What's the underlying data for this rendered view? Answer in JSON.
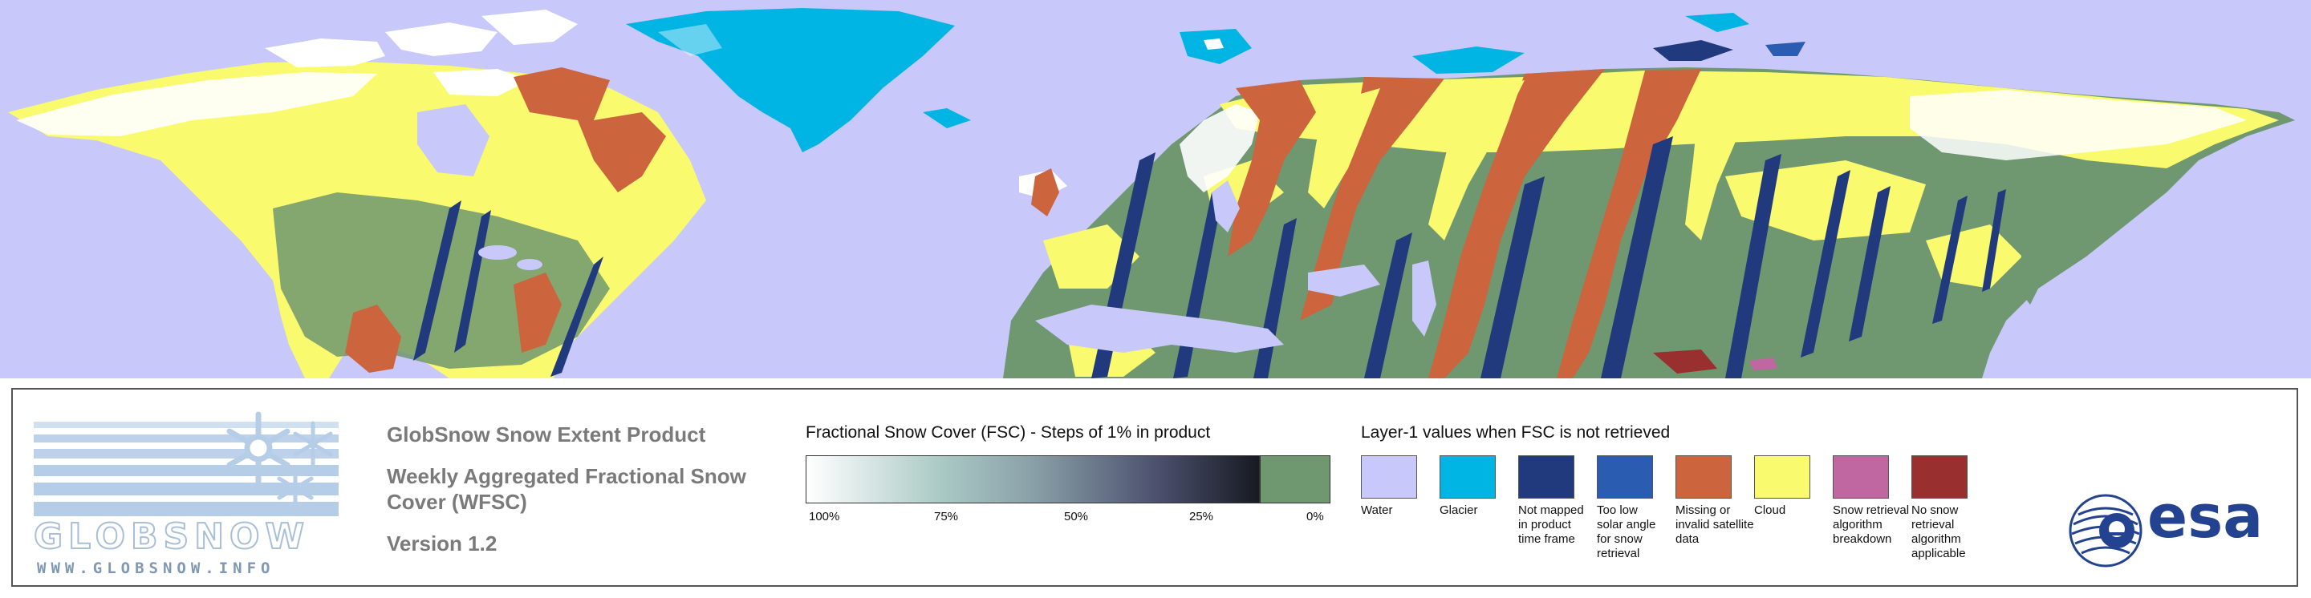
{
  "colors": {
    "water": "#c8c8fa",
    "glacier": "#00b4e4",
    "not_mapped": "#213a7e",
    "low_sun": "#2a5cb2",
    "missing": "#cc643e",
    "cloud": "#fafa6e",
    "breakdown": "#c066a0",
    "no_snow_applicable": "#99302f",
    "snow_free": "#6f9770",
    "snow": "#ffffff",
    "land_shade": "#a9c9c4"
  },
  "logo": {
    "wordmark": "GLOBSNOW",
    "url": "WWW.GLOBSNOW.INFO",
    "icon": "snowflake-icon"
  },
  "product": {
    "title": "GlobSnow Snow Extent Product",
    "subtitle": "Weekly Aggregated Fractional Snow Cover (WFSC)",
    "version": "Version 1.2"
  },
  "fsc_legend": {
    "title": "Fractional Snow Cover (FSC) - Steps of 1% in product",
    "ticks": [
      "100%",
      "75%",
      "50%",
      "25%",
      "0%"
    ]
  },
  "layer1_legend": {
    "title": "Layer-1 values when FSC is not retrieved",
    "items": [
      {
        "label": "Water",
        "color": "#c8c8fa"
      },
      {
        "label": "Glacier",
        "color": "#00b4e4"
      },
      {
        "label": "Not mapped in product time frame",
        "color": "#213a7e"
      },
      {
        "label": "Too low solar angle for snow retrieval",
        "color": "#2a5cb2"
      },
      {
        "label": "Missing or invalid satellite data",
        "color": "#cc643e"
      },
      {
        "label": "Cloud",
        "color": "#fafa6e"
      },
      {
        "label": "Snow retrieval algorithm breakdown",
        "color": "#c066a0"
      },
      {
        "label": "No snow retrieval algorithm applicable",
        "color": "#99302f"
      }
    ]
  },
  "esa": {
    "text": "esa",
    "icon": "esa-globe-icon"
  }
}
